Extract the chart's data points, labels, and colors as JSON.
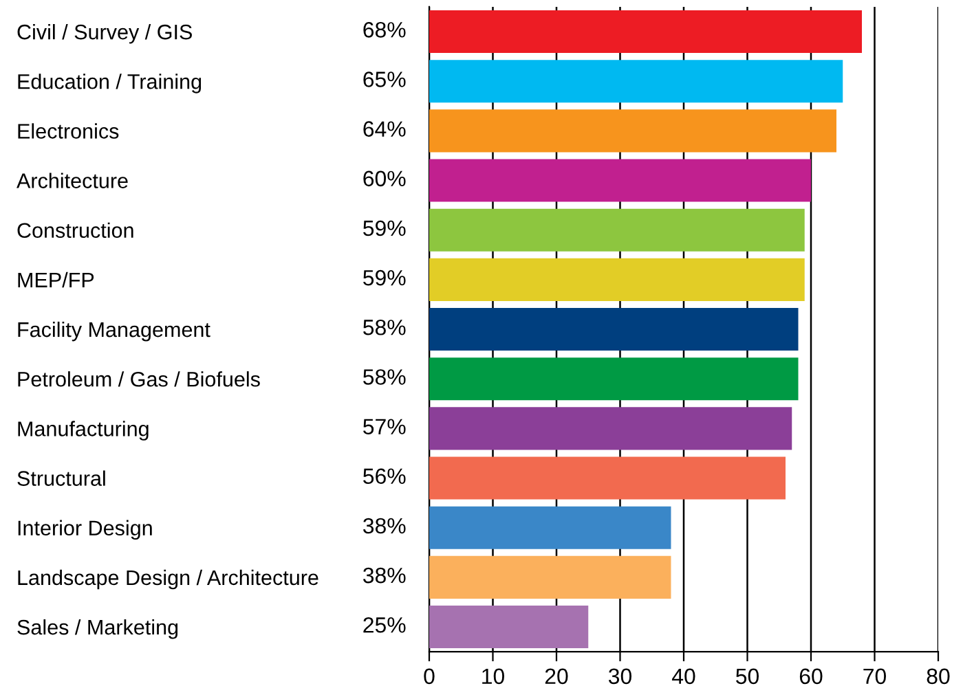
{
  "chart_data": {
    "type": "bar",
    "orientation": "horizontal",
    "categories": [
      "Civil / Survey / GIS",
      "Education / Training",
      "Electronics",
      "Architecture",
      "Construction",
      "MEP/FP",
      "Facility Management",
      "Petroleum / Gas / Biofuels",
      "Manufacturing",
      "Structural",
      "Interior Design",
      "Landscape Design / Architecture",
      "Sales / Marketing"
    ],
    "values": [
      68,
      65,
      64,
      60,
      59,
      59,
      58,
      58,
      57,
      56,
      38,
      38,
      25
    ],
    "value_labels": [
      "68%",
      "65%",
      "64%",
      "60%",
      "59%",
      "59%",
      "58%",
      "58%",
      "57%",
      "56%",
      "38%",
      "38%",
      "25%"
    ],
    "colors": [
      "#ed1c24",
      "#00b9f1",
      "#f7941d",
      "#c1208f",
      "#8dc63f",
      "#e2cd26",
      "#003f7f",
      "#009a44",
      "#8b3f98",
      "#f26a4f",
      "#3a87c8",
      "#fbb05c",
      "#a672b0"
    ],
    "xlim": [
      0,
      80
    ],
    "xticks": [
      0,
      10,
      20,
      30,
      40,
      50,
      60,
      70,
      80
    ],
    "grid": "x"
  }
}
